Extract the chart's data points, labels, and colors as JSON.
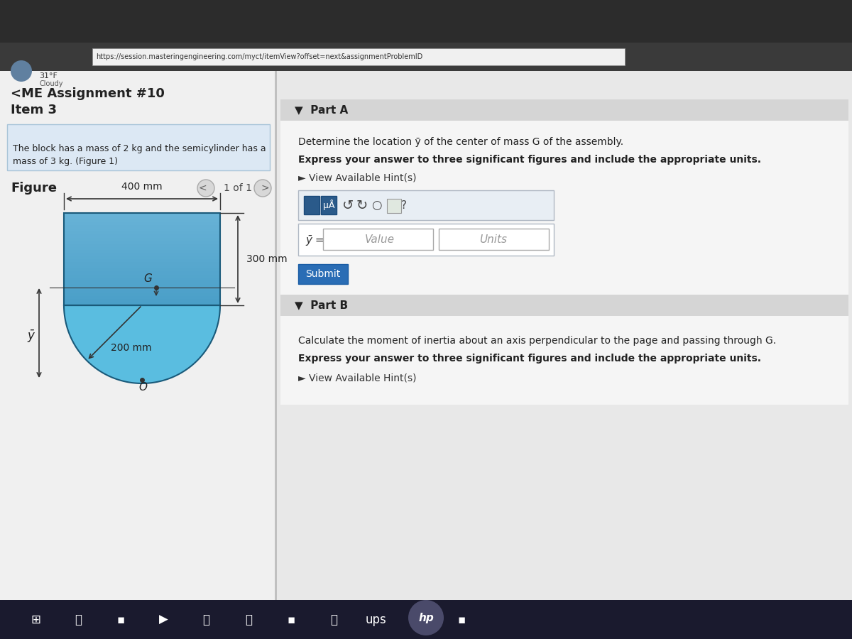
{
  "bg_color": "#c8c8c8",
  "page_bg": "#e8e8e8",
  "header_text": "<ME Assignment #10",
  "item_text": "Item 3",
  "problem_text": "The block has a mass of 2 kg and the semicylinder has a\nmass of 3 kg. (Figure 1)",
  "figure_label": "Figure",
  "nav_text": "1 of 1",
  "part_a_title": "Part A",
  "part_a_desc": "Determine the location ȳ of the center of mass G of the assembly.",
  "part_a_bold": "Express your answer to three significant figures and include the appropriate units.",
  "hint_text": "► View Available Hint(s)",
  "y_bar_label": "ȳ =",
  "value_placeholder": "Value",
  "units_placeholder": "Units",
  "submit_text": "Submit",
  "part_b_title": "Part B",
  "part_b_desc": "Calculate the moment of inertia about an axis perpendicular to the page and passing through G.",
  "part_b_bold": "Express your answer to three significant figures and include the appropriate units.",
  "hint_text2": "► View Available Hint(s)",
  "dim_400": "400 mm",
  "dim_300": "300 mm",
  "dim_200": "200 mm",
  "label_G": "G",
  "label_O": "O",
  "label_y": "ȳ",
  "block_color_top": "#4a9fc8",
  "block_color_mid": "#5ab4d8",
  "semicyl_color": "#6ac8e8",
  "problem_box_bg": "#dce8f0",
  "problem_box_border": "#a0b8c8",
  "submit_btn_color": "#2a6db5",
  "input_box_bg": "#ffffff",
  "toolbar_bg": "#e0e8f0",
  "url_bar": "https://session.masteringengineering.com/myct/itemView?offset=next&assignmentProblemID"
}
